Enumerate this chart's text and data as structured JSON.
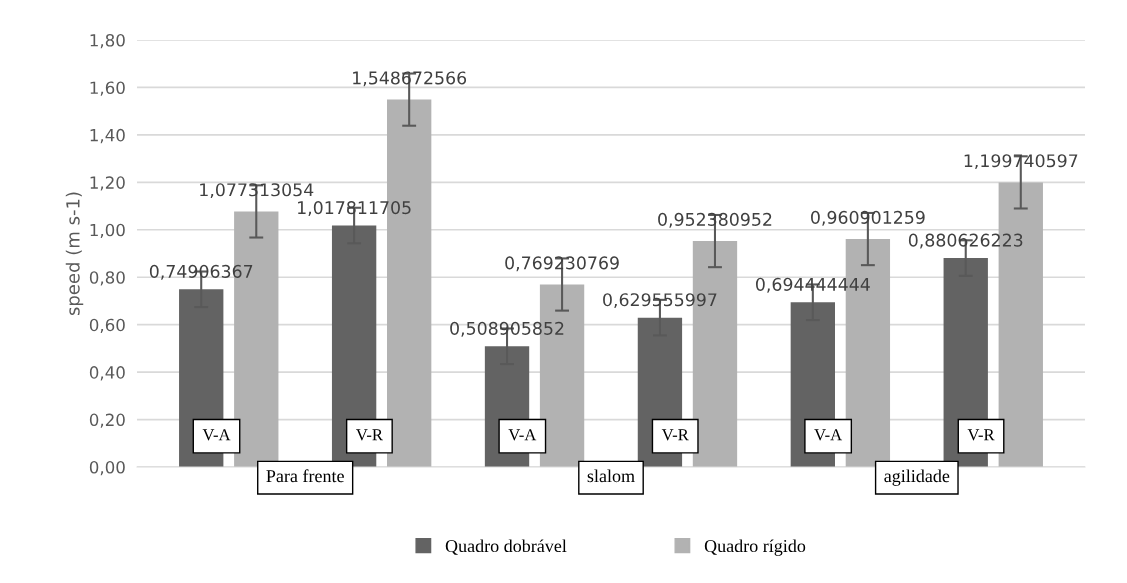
{
  "chart_data": {
    "type": "bar",
    "ylabel": "speed (m s-1)",
    "categories": [
      "V-A",
      "V-R",
      "V-A",
      "V-R",
      "V-A",
      "V-R"
    ],
    "annotations": [
      "Para frente",
      "slalom",
      "agilidade"
    ],
    "series": [
      {
        "name": "Quadro dobrável",
        "color": "#636363",
        "values": [
          0.74906367,
          1.017811705,
          0.508905852,
          0.629555997,
          0.694444444,
          0.880626223
        ],
        "errors": [
          0.075,
          0.075,
          0.075,
          0.075,
          0.075,
          0.075
        ],
        "value_labels": [
          "0,74906367",
          "1,017811705",
          "0,508905852",
          "0,629555997",
          "0,694444444",
          "0,880626223"
        ]
      },
      {
        "name": "Quadro rígido",
        "color": "#b2b2b2",
        "values": [
          1.077313054,
          1.548672566,
          0.769230769,
          0.952380952,
          0.960901259,
          1.199740597
        ],
        "errors": [
          0.11,
          0.11,
          0.11,
          0.11,
          0.11,
          0.11
        ],
        "value_labels": [
          "1,077313054",
          "1,548672566",
          "0,769230769",
          "0,952380952",
          "0,960901259",
          "1,199740597"
        ]
      }
    ],
    "ylim": [
      0,
      1.8
    ],
    "yticks": [
      {
        "value": 0,
        "label": "0,00"
      },
      {
        "value": 0.2,
        "label": "0,20"
      },
      {
        "value": 0.4,
        "label": "0,40"
      },
      {
        "value": 0.6,
        "label": "0,60"
      },
      {
        "value": 0.8,
        "label": "0,80"
      },
      {
        "value": 1.0,
        "label": "1,00"
      },
      {
        "value": 1.2,
        "label": "1,20"
      },
      {
        "value": 1.4,
        "label": "1,40"
      },
      {
        "value": 1.6,
        "label": "1,60"
      },
      {
        "value": 1.8,
        "label": "1,80"
      }
    ],
    "grid": "y",
    "legend": "bottom"
  }
}
